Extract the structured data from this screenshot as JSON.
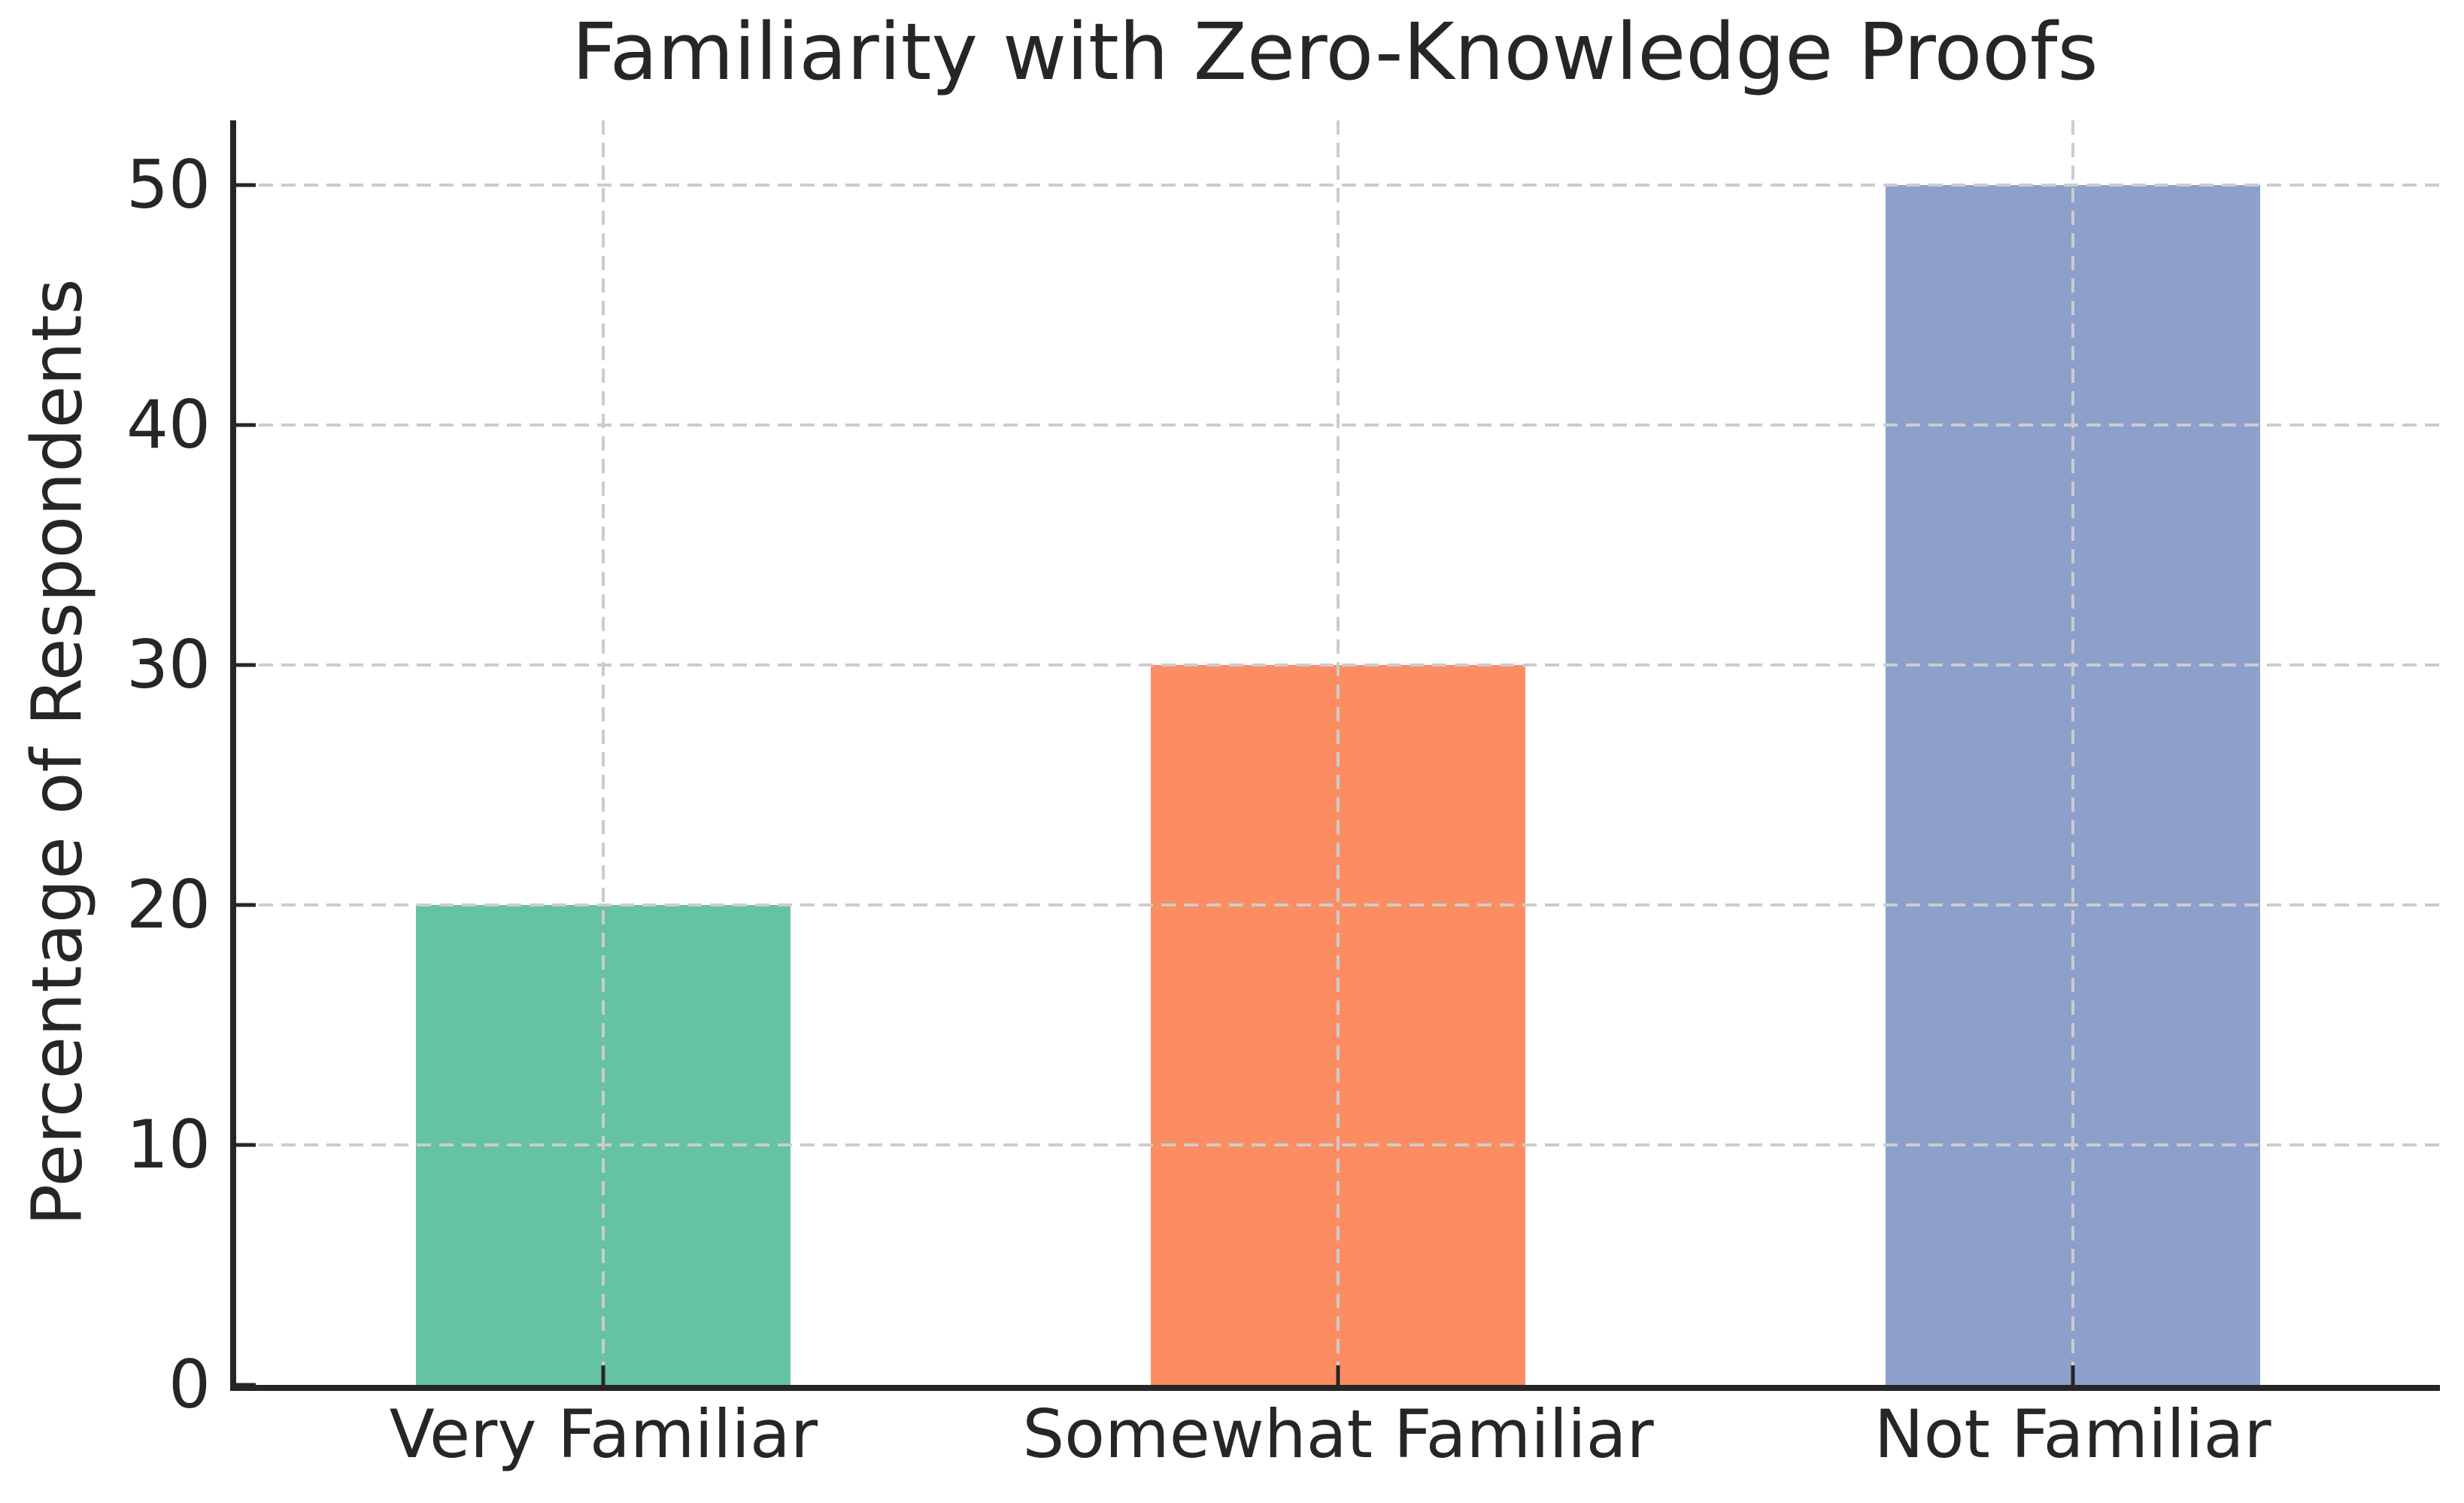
{
  "chart_data": {
    "type": "bar",
    "title": "Familiarity with Zero-Knowledge Proofs",
    "xlabel": "",
    "ylabel": "Percentage of Respondents",
    "categories": [
      "Very Familiar",
      "Somewhat Familiar",
      "Not Familiar"
    ],
    "values": [
      20,
      30,
      50
    ],
    "bar_colors": [
      "#66c2a5",
      "#fc8d62",
      "#8da0cb"
    ],
    "yticks": [
      0,
      10,
      20,
      30,
      40,
      50
    ],
    "ytick_labels": [
      "0",
      "10",
      "20",
      "30",
      "40",
      "50"
    ],
    "ylim": [
      0,
      52.7
    ],
    "xlim": [
      -0.5,
      2.5
    ],
    "bar_width": 0.51,
    "grid": {
      "horizontal": true,
      "vertical": true,
      "style": "dashed",
      "color": "#cccccc",
      "grid_above_bars": true
    },
    "legend": null,
    "spine_color": "#262626",
    "text_color": "#262626",
    "background_color": "#ffffff"
  }
}
